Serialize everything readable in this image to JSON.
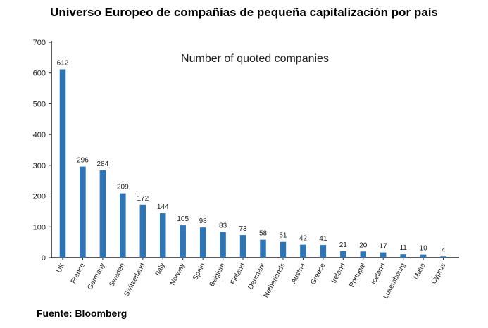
{
  "title": "Universo Europeo de compañías de pequeña capitalización por país",
  "source": "Fuente: Bloomberg",
  "chart_data": {
    "type": "bar",
    "title": "Number of quoted companies",
    "xlabel": "",
    "ylabel": "",
    "ylim": [
      0,
      700
    ],
    "yticks": [
      0,
      100,
      200,
      300,
      400,
      500,
      600,
      700
    ],
    "ytick_labels": [
      "0",
      "100",
      "200",
      "300",
      "400",
      "500",
      "600",
      "700"
    ],
    "grid": false,
    "bar_color": "#2e75b6",
    "categories": [
      "UK",
      "France",
      "Germany",
      "Sweden",
      "Switzerland",
      "Italy",
      "Norway",
      "Spain",
      "Belgium",
      "Finland",
      "Denmark",
      "Netherlands",
      "Austria",
      "Greece",
      "Ireland",
      "Portugal",
      "Iceland",
      "Luxembourg",
      "Malta",
      "Cyprus"
    ],
    "values": [
      612,
      296,
      284,
      209,
      172,
      144,
      105,
      98,
      83,
      73,
      58,
      51,
      42,
      41,
      21,
      20,
      17,
      11,
      10,
      4
    ]
  }
}
